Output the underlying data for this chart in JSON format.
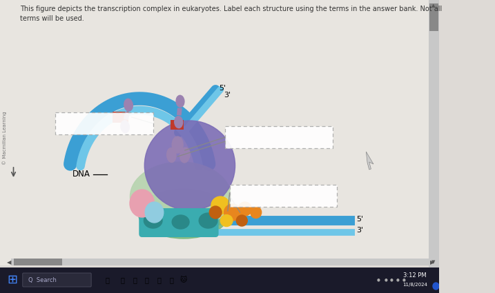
{
  "title_text": "This figure depicts the transcription complex in eukaryotes. Label each structure using the terms in the answer bank. Not all\nterms will be used.",
  "copyright_text": "© Macmillan Learning",
  "dna_label": "DNA",
  "label_5prime_top": "5'",
  "label_3prime_top": "3'",
  "label_5prime_bot": "5'",
  "label_3prime_bot": "3'",
  "bg_color": "#dedad6",
  "dna_outer_color": "#3b9fd4",
  "dna_inner_color": "#6ec6e8",
  "red_marker_color": "#c0392b",
  "purple_dumbbell_color": "#9b82b0",
  "large_purple_color": "#7b6bb5",
  "green_light_color": "#b8d4b0",
  "green_dark_color": "#7ab87a",
  "teal_color": "#3aacb0",
  "teal_dark_color": "#2a8888",
  "pink_color": "#e8a0b0",
  "light_blue_color": "#90cce0",
  "orange_color": "#e8861e",
  "gold_color": "#f0c020",
  "dark_orange_color": "#c06010",
  "box_color": "#aaaaaa",
  "white": "#ffffff",
  "taskbar_color": "#1a1a2a",
  "line_color": "#888888",
  "scroll_bg": "#c8c8c8",
  "scroll_ind": "#888888"
}
